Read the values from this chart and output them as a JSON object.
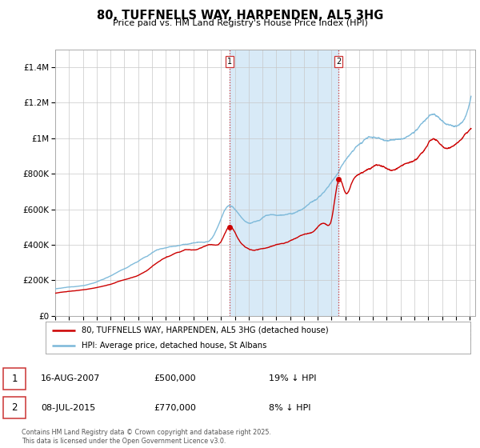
{
  "title": "80, TUFFNELLS WAY, HARPENDEN, AL5 3HG",
  "subtitle": "Price paid vs. HM Land Registry's House Price Index (HPI)",
  "legend_line1": "80, TUFFNELLS WAY, HARPENDEN, AL5 3HG (detached house)",
  "legend_line2": "HPI: Average price, detached house, St Albans",
  "annotation1_date": "16-AUG-2007",
  "annotation1_price": "£500,000",
  "annotation1_hpi": "19% ↓ HPI",
  "annotation2_date": "08-JUL-2015",
  "annotation2_price": "£770,000",
  "annotation2_hpi": "8% ↓ HPI",
  "footer": "Contains HM Land Registry data © Crown copyright and database right 2025.\nThis data is licensed under the Open Government Licence v3.0.",
  "hpi_color": "#7ab8d9",
  "price_color": "#cc0000",
  "marker_color": "#cc0000",
  "dashed_color": "#cc3333",
  "shading_color": "#d8eaf7",
  "ylim": [
    0,
    1500000
  ],
  "yticks": [
    0,
    200000,
    400000,
    600000,
    800000,
    1000000,
    1200000,
    1400000
  ],
  "ytick_labels": [
    "£0",
    "£200K",
    "£400K",
    "£600K",
    "£800K",
    "£1M",
    "£1.2M",
    "£1.4M"
  ],
  "xticks": [
    1995,
    1996,
    1997,
    1998,
    1999,
    2000,
    2001,
    2002,
    2003,
    2004,
    2005,
    2006,
    2007,
    2008,
    2009,
    2010,
    2011,
    2012,
    2013,
    2014,
    2015,
    2016,
    2017,
    2018,
    2019,
    2020,
    2021,
    2022,
    2023,
    2024,
    2025
  ],
  "sale1_x": 2007.62,
  "sale1_y": 500000,
  "sale2_x": 2015.52,
  "sale2_y": 770000
}
